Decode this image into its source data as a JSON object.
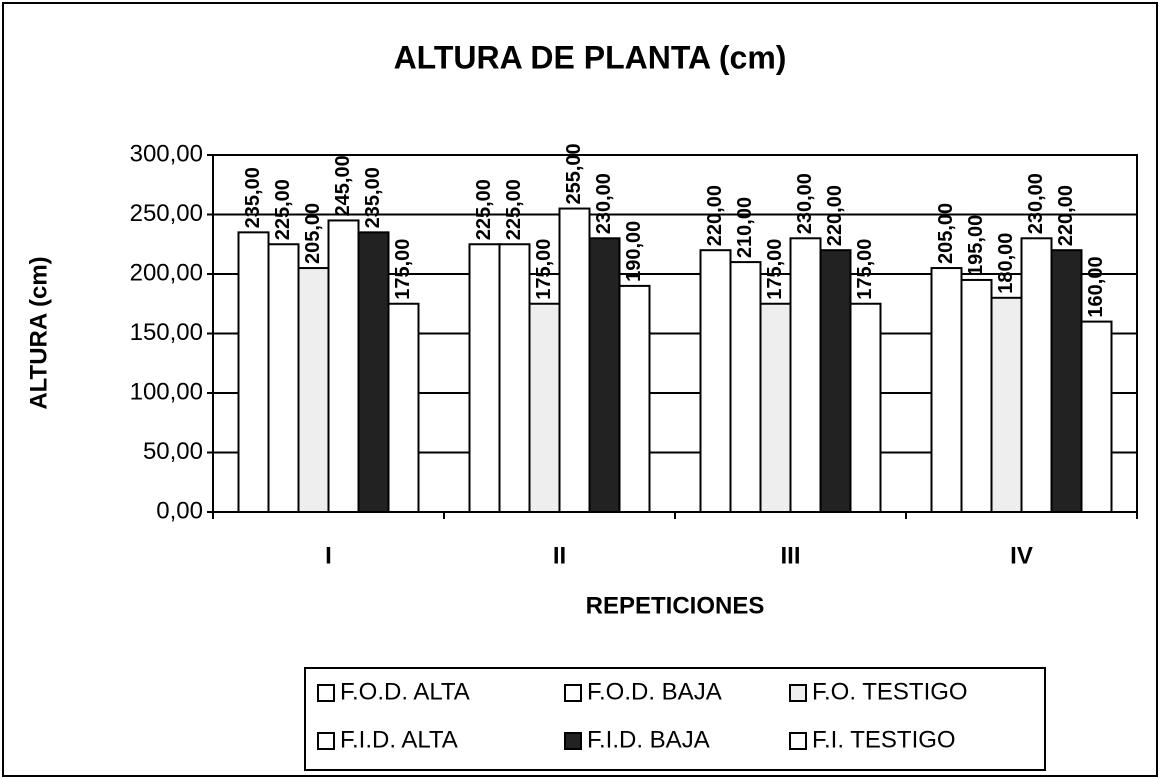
{
  "chart_data": {
    "type": "bar",
    "title": "ALTURA DE PLANTA (cm)",
    "x_label": "REPETICIONES",
    "y_label": "ALTURA (cm)",
    "categories": [
      "I",
      "II",
      "III",
      "IV"
    ],
    "series": [
      {
        "name": "F.O.D. ALTA",
        "color": "#ffffff",
        "values": [
          235,
          225,
          220,
          205
        ],
        "value_labels": [
          "235,00",
          "225,00",
          "220,00",
          "205,00"
        ]
      },
      {
        "name": "F.O.D. BAJA",
        "color": "#ffffff",
        "values": [
          225,
          225,
          210,
          195
        ],
        "value_labels": [
          "225,00",
          "225,00",
          "210,00",
          "195,00"
        ]
      },
      {
        "name": "F.O. TESTIGO",
        "color": "#eeeeee",
        "values": [
          205,
          175,
          175,
          180
        ],
        "value_labels": [
          "205,00",
          "175,00",
          "175,00",
          "180,00"
        ]
      },
      {
        "name": "F.I.D. ALTA",
        "color": "#ffffff",
        "values": [
          245,
          255,
          230,
          230
        ],
        "value_labels": [
          "245,00",
          "255,00",
          "230,00",
          "230,00"
        ]
      },
      {
        "name": "F.I.D. BAJA",
        "color": "#222222",
        "values": [
          235,
          230,
          220,
          220
        ],
        "value_labels": [
          "235,00",
          "230,00",
          "220,00",
          "220,00"
        ]
      },
      {
        "name": "F.I. TESTIGO",
        "color": "#ffffff",
        "values": [
          175,
          190,
          175,
          160
        ],
        "value_labels": [
          "175,00",
          "190,00",
          "175,00",
          "160,00"
        ]
      }
    ],
    "ylim": [
      0,
      300
    ],
    "yticks": [
      {
        "value": 0,
        "label": "0,00"
      },
      {
        "value": 50,
        "label": "50,00"
      },
      {
        "value": 100,
        "label": "100,00"
      },
      {
        "value": 150,
        "label": "150,00"
      },
      {
        "value": 200,
        "label": "200,00"
      },
      {
        "value": 250,
        "label": "250,00"
      },
      {
        "value": 300,
        "label": "300,00"
      }
    ],
    "grid": true,
    "legend": "bottom"
  }
}
